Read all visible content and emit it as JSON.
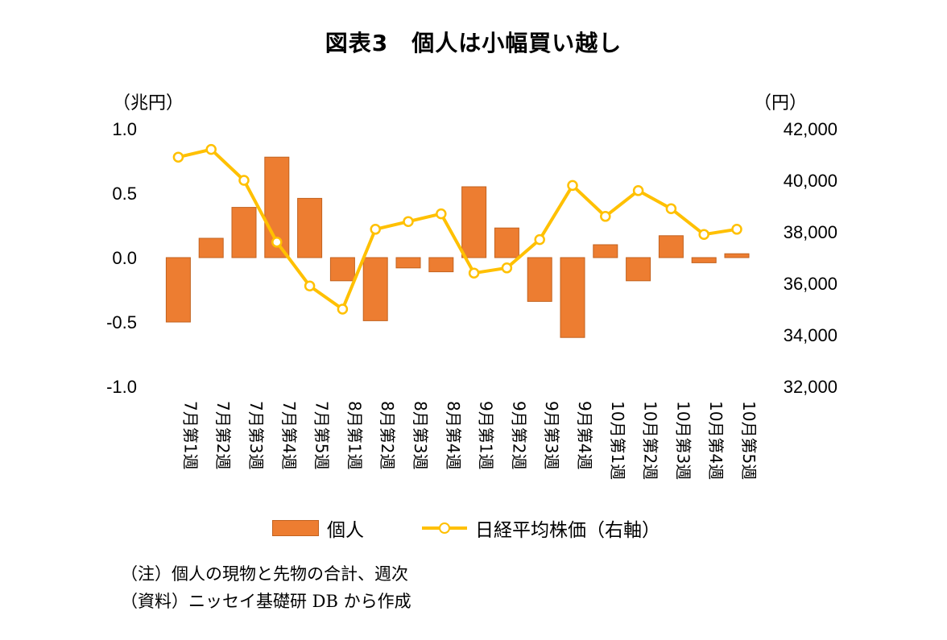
{
  "title": "図表3　個人は小幅買い越し",
  "left_unit": "（兆円）",
  "right_unit": "（円）",
  "legend": {
    "bar_label": "個人",
    "line_label": "日経平均株価（右軸）"
  },
  "notes": [
    "（注）個人の現物と先物の合計、週次",
    "（資料）ニッセイ基礎研 DB から作成"
  ],
  "colors": {
    "bar": "#ED7D31",
    "bar_border": "#c2621f",
    "line": "#FFC000"
  },
  "chart_data": {
    "type": "bar",
    "title": "図表3　個人は小幅買い越し",
    "categories": [
      "7月第1週",
      "7月第2週",
      "7月第3週",
      "7月第4週",
      "7月第5週",
      "8月第1週",
      "8月第2週",
      "8月第3週",
      "8月第4週",
      "9月第1週",
      "9月第2週",
      "9月第3週",
      "9月第4週",
      "10月第1週",
      "10月第2週",
      "10月第3週",
      "10月第4週",
      "10月第5週"
    ],
    "series": [
      {
        "name": "個人",
        "type": "bar",
        "axis": "left",
        "values": [
          -0.5,
          0.15,
          0.39,
          0.78,
          0.46,
          -0.18,
          -0.49,
          -0.08,
          -0.11,
          0.55,
          0.23,
          -0.34,
          -0.62,
          0.1,
          -0.18,
          0.17,
          -0.04,
          0.03
        ]
      },
      {
        "name": "日経平均株価（右軸）",
        "type": "line",
        "axis": "right",
        "values": [
          40900,
          41200,
          40000,
          37600,
          35900,
          35000,
          38100,
          38400,
          38700,
          36400,
          36600,
          37700,
          39800,
          38600,
          39600,
          38900,
          37900,
          38100
        ]
      }
    ],
    "left_axis": {
      "ylim": [
        -1.0,
        1.0
      ],
      "ticks": [
        "1.0",
        "0.5",
        "0.0",
        "-0.5",
        "-1.0"
      ],
      "tick_values": [
        1.0,
        0.5,
        0.0,
        -0.5,
        -1.0
      ]
    },
    "right_axis": {
      "ylim": [
        32000,
        42000
      ],
      "ticks": [
        "42,000",
        "40,000",
        "38,000",
        "36,000",
        "34,000",
        "32,000"
      ],
      "tick_values": [
        42000,
        40000,
        38000,
        36000,
        34000,
        32000
      ]
    },
    "grid": false,
    "legend_position": "bottom"
  }
}
